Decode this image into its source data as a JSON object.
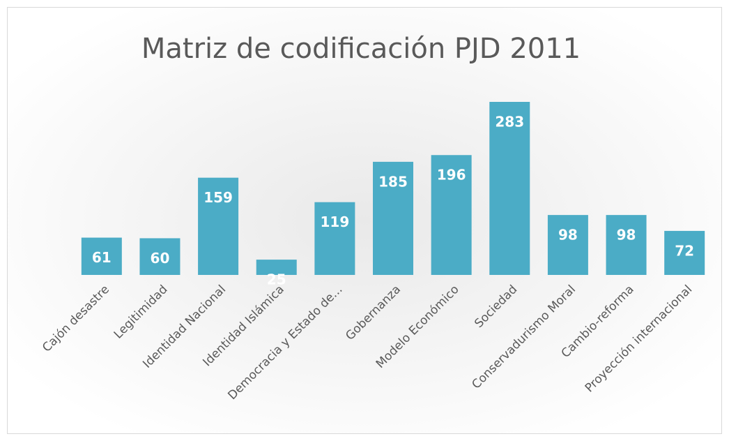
{
  "chart_data": {
    "type": "bar",
    "title": "Matriz de codificación PJD 2011",
    "categories": [
      "Cajón desastre",
      "Legitimidad",
      "Identidad Nacional",
      "Identidad Islámica",
      "Democracia y Estado de...",
      "Gobernanza",
      "Modelo Económico",
      "Sociedad",
      "Conservadurismo Moral",
      "Cambio-reforma",
      "Proyección internacional"
    ],
    "values": [
      61,
      60,
      159,
      25,
      119,
      185,
      196,
      283,
      98,
      98,
      72
    ],
    "color": "#4bacc6"
  }
}
